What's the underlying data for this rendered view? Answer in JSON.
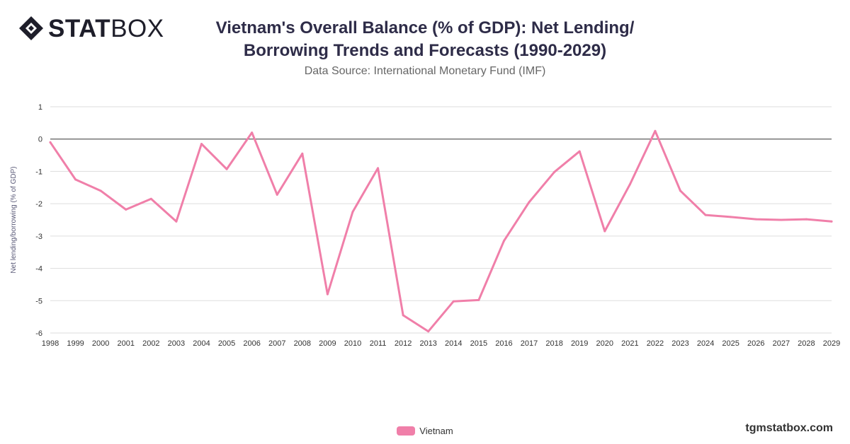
{
  "logo": {
    "text_bold": "STAT",
    "text_light": "BOX"
  },
  "title_line1": "Vietnam's Overall Balance (% of GDP): Net Lending/",
  "title_line2": "Borrowing Trends and Forecasts (1990-2029)",
  "subtitle": "Data Source: International Monetary Fund (IMF)",
  "watermark": "tgmstatbox.com",
  "colors": {
    "series": "#f07fa9",
    "zero_line": "#333333",
    "grid": "#dddddd",
    "axis_text": "#333333",
    "ylabel": "#5a5a78"
  },
  "chart_data": {
    "type": "line",
    "title": "Vietnam's Overall Balance (% of GDP): Net Lending/ Borrowing Trends and Forecasts (1990-2029)",
    "ylabel": "Net lending/borrowing (% of GDP)",
    "xlabel": "",
    "ylim": [
      -6,
      1
    ],
    "yticks": [
      1,
      0,
      -1,
      -2,
      -3,
      -4,
      -5,
      -6
    ],
    "grid": true,
    "legend_position": "bottom-center",
    "categories": [
      "1998",
      "1999",
      "2000",
      "2001",
      "2002",
      "2003",
      "2004",
      "2005",
      "2006",
      "2007",
      "2008",
      "2009",
      "2010",
      "2011",
      "2012",
      "2013",
      "2014",
      "2015",
      "2016",
      "2017",
      "2018",
      "2019",
      "2020",
      "2021",
      "2022",
      "2023",
      "2024",
      "2025",
      "2026",
      "2027",
      "2028",
      "2029"
    ],
    "series": [
      {
        "name": "Vietnam",
        "values": [
          -0.1,
          -1.25,
          -1.6,
          -2.18,
          -1.85,
          -2.55,
          -0.15,
          -0.93,
          0.2,
          -1.72,
          -0.45,
          -4.8,
          -2.25,
          -0.9,
          -5.45,
          -5.95,
          -5.02,
          -4.98,
          -3.15,
          -1.95,
          -1.02,
          -0.38,
          -2.85,
          -1.4,
          0.25,
          -1.6,
          -2.35,
          -2.41,
          -2.48,
          -2.5,
          -2.48,
          -2.55
        ]
      }
    ]
  }
}
